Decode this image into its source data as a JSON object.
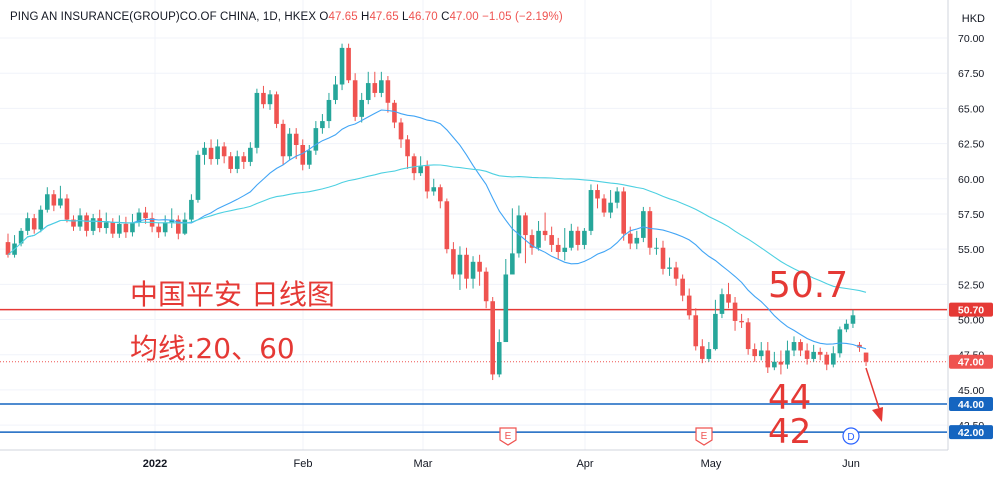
{
  "header": {
    "symbol": "PING AN INSURANCE(GROUP)CO.OF CHINA, 1D, HKEX",
    "open_label": "O",
    "open": "47.65",
    "high_label": "H",
    "high": "47.65",
    "low_label": "L",
    "low": "46.70",
    "close_label": "C",
    "close": "47.00",
    "change": "−1.05 (−2.19%)"
  },
  "currency": "HKD",
  "colors": {
    "up": "#26a69a",
    "down": "#ef5350",
    "ma20": "#42a5f5",
    "ma60": "#4dd0e1",
    "resistance": "#e53935",
    "support": "#1565c0",
    "annotation": "#e53935",
    "price_line": "#ef5350"
  },
  "chart_data": {
    "type": "candlestick",
    "y_axis": {
      "min": 40.8,
      "max": 70.5,
      "side": "right",
      "ticks": [
        "70.00",
        "67.50",
        "65.00",
        "62.50",
        "60.00",
        "57.50",
        "55.00",
        "52.50",
        "50.00",
        "47.50",
        "45.00",
        "42.50"
      ]
    },
    "x_axis": {
      "labels": [
        "2022",
        "Feb",
        "Mar",
        "Apr",
        "May",
        "Jun"
      ]
    },
    "price_labels": [
      {
        "value": 50.7,
        "text": "50.70",
        "color": "#e53935"
      },
      {
        "value": 47.0,
        "text": "47.00",
        "color": "#ef5350"
      },
      {
        "value": 44.0,
        "text": "44.00",
        "color": "#1565c0"
      },
      {
        "value": 42.0,
        "text": "42.00",
        "color": "#1565c0"
      }
    ],
    "horizontal_lines": [
      {
        "value": 50.7,
        "color": "#e53935",
        "style": "solid"
      },
      {
        "value": 44.0,
        "color": "#1565c0",
        "style": "solid"
      },
      {
        "value": 42.0,
        "color": "#1565c0",
        "style": "solid"
      },
      {
        "value": 47.0,
        "color": "#ef5350",
        "style": "dotted"
      }
    ],
    "candles": [
      [
        55.5,
        54.6,
        56.1,
        54.4
      ],
      [
        54.6,
        55.4,
        56.0,
        54.4
      ],
      [
        55.4,
        56.3,
        56.5,
        55.2
      ],
      [
        56.3,
        57.2,
        57.6,
        56.0
      ],
      [
        57.2,
        56.4,
        57.5,
        56.1
      ],
      [
        56.4,
        57.8,
        58.1,
        56.2
      ],
      [
        57.8,
        58.9,
        59.4,
        57.6
      ],
      [
        58.9,
        58.1,
        59.2,
        57.7
      ],
      [
        58.1,
        58.6,
        59.5,
        57.9
      ],
      [
        58.6,
        57.1,
        58.9,
        56.9
      ],
      [
        57.1,
        56.6,
        57.4,
        56.3
      ],
      [
        56.6,
        57.4,
        57.9,
        56.3
      ],
      [
        57.4,
        56.3,
        57.6,
        55.9
      ],
      [
        56.3,
        57.2,
        57.5,
        56.0
      ],
      [
        57.2,
        56.5,
        57.8,
        56.2
      ],
      [
        56.5,
        56.9,
        57.6,
        56.1
      ],
      [
        56.9,
        56.1,
        57.2,
        55.8
      ],
      [
        56.1,
        56.8,
        57.4,
        55.8
      ],
      [
        56.8,
        56.2,
        57.3,
        55.8
      ],
      [
        56.2,
        56.9,
        57.5,
        55.9
      ],
      [
        56.9,
        57.6,
        57.9,
        56.6
      ],
      [
        57.6,
        57.2,
        58.0,
        56.8
      ],
      [
        57.2,
        56.6,
        57.6,
        56.2
      ],
      [
        56.6,
        56.2,
        56.9,
        55.8
      ],
      [
        56.2,
        56.9,
        57.4,
        55.9
      ],
      [
        56.9,
        57.1,
        57.9,
        56.5
      ],
      [
        57.1,
        56.1,
        57.4,
        55.7
      ],
      [
        56.1,
        57.1,
        57.6,
        56.0
      ],
      [
        57.1,
        58.5,
        58.9,
        56.9
      ],
      [
        58.5,
        61.7,
        62.0,
        58.3
      ],
      [
        61.7,
        62.2,
        62.6,
        61.0
      ],
      [
        62.2,
        61.4,
        62.8,
        61.0
      ],
      [
        61.4,
        62.3,
        62.8,
        61.0
      ],
      [
        62.3,
        61.6,
        62.6,
        61.1
      ],
      [
        61.6,
        60.7,
        61.9,
        60.4
      ],
      [
        60.7,
        61.6,
        62.0,
        60.4
      ],
      [
        61.6,
        61.2,
        61.9,
        60.7
      ],
      [
        61.2,
        62.2,
        62.6,
        60.9
      ],
      [
        62.2,
        66.1,
        66.4,
        61.8
      ],
      [
        66.1,
        65.3,
        66.6,
        65.0
      ],
      [
        65.3,
        66.0,
        66.3,
        64.9
      ],
      [
        66.0,
        63.9,
        66.2,
        63.6
      ],
      [
        63.9,
        61.6,
        64.2,
        61.0
      ],
      [
        61.6,
        63.2,
        63.6,
        61.3
      ],
      [
        63.2,
        62.4,
        63.6,
        61.4
      ],
      [
        62.4,
        61.0,
        62.8,
        60.6
      ],
      [
        61.0,
        62.0,
        62.4,
        60.7
      ],
      [
        62.0,
        63.6,
        64.1,
        61.7
      ],
      [
        63.6,
        64.1,
        64.6,
        63.2
      ],
      [
        64.1,
        65.6,
        66.1,
        63.6
      ],
      [
        65.6,
        66.7,
        67.3,
        65.3
      ],
      [
        66.7,
        69.3,
        69.6,
        66.3
      ],
      [
        69.3,
        67.0,
        69.6,
        66.8
      ],
      [
        67.0,
        64.4,
        67.5,
        64.1
      ],
      [
        64.4,
        65.6,
        66.1,
        64.0
      ],
      [
        65.6,
        66.8,
        67.6,
        65.3
      ],
      [
        66.8,
        66.1,
        67.6,
        65.8
      ],
      [
        66.1,
        67.0,
        67.6,
        65.8
      ],
      [
        67.0,
        65.4,
        67.3,
        64.7
      ],
      [
        65.4,
        64.0,
        65.6,
        63.6
      ],
      [
        64.0,
        62.8,
        64.3,
        62.2
      ],
      [
        62.8,
        61.6,
        63.1,
        60.7
      ],
      [
        61.6,
        60.4,
        61.8,
        59.9
      ],
      [
        60.4,
        60.9,
        61.6,
        60.2
      ],
      [
        60.9,
        59.1,
        61.3,
        58.6
      ],
      [
        59.1,
        59.4,
        60.0,
        58.8
      ],
      [
        59.4,
        58.4,
        59.6,
        57.9
      ],
      [
        58.4,
        55.0,
        58.6,
        54.7
      ],
      [
        55.0,
        53.2,
        55.5,
        52.9
      ],
      [
        53.2,
        54.6,
        55.2,
        52.1
      ],
      [
        54.6,
        52.9,
        55.1,
        52.2
      ],
      [
        52.9,
        54.1,
        54.5,
        52.2
      ],
      [
        54.1,
        53.4,
        54.6,
        52.4
      ],
      [
        53.4,
        51.3,
        53.7,
        50.8
      ],
      [
        51.3,
        46.1,
        51.6,
        45.7
      ],
      [
        46.1,
        48.4,
        49.3,
        45.9
      ],
      [
        48.4,
        53.2,
        54.3,
        52.1
      ],
      [
        53.2,
        54.7,
        57.9,
        53.5
      ],
      [
        54.7,
        57.4,
        58.1,
        54.4
      ],
      [
        57.4,
        56.0,
        57.6,
        54.0
      ],
      [
        56.0,
        55.1,
        56.4,
        54.6
      ],
      [
        55.1,
        56.3,
        57.0,
        54.9
      ],
      [
        56.3,
        56.0,
        57.6,
        55.6
      ],
      [
        56.0,
        55.3,
        56.6,
        54.8
      ],
      [
        55.3,
        54.8,
        55.8,
        54.3
      ],
      [
        54.8,
        55.1,
        56.5,
        54.2
      ],
      [
        55.1,
        56.3,
        56.8,
        54.9
      ],
      [
        56.3,
        55.3,
        56.6,
        54.9
      ],
      [
        55.3,
        56.3,
        56.5,
        55.0
      ],
      [
        56.3,
        59.2,
        59.6,
        56.0
      ],
      [
        59.2,
        58.6,
        59.6,
        57.9
      ],
      [
        58.6,
        57.6,
        58.9,
        57.3
      ],
      [
        57.6,
        58.3,
        59.2,
        57.2
      ],
      [
        58.3,
        59.1,
        59.4,
        57.9
      ],
      [
        59.1,
        56.1,
        59.4,
        55.6
      ],
      [
        56.1,
        55.4,
        56.6,
        55.0
      ],
      [
        55.4,
        55.8,
        56.3,
        55.0
      ],
      [
        55.8,
        57.7,
        58.0,
        55.5
      ],
      [
        57.7,
        55.1,
        58.0,
        54.6
      ],
      [
        55.1,
        55.1,
        55.8,
        54.6
      ],
      [
        55.1,
        53.6,
        55.6,
        53.2
      ],
      [
        53.6,
        53.7,
        54.4,
        53.1
      ],
      [
        53.7,
        52.9,
        54.1,
        52.4
      ],
      [
        52.9,
        51.7,
        53.2,
        51.3
      ],
      [
        51.7,
        50.3,
        52.2,
        50.0
      ],
      [
        50.3,
        48.1,
        50.8,
        47.8
      ],
      [
        48.1,
        47.2,
        48.6,
        46.9
      ],
      [
        47.2,
        47.9,
        48.4,
        47.0
      ],
      [
        47.9,
        50.4,
        51.4,
        47.8
      ],
      [
        50.4,
        51.8,
        52.2,
        50.1
      ],
      [
        51.8,
        51.2,
        52.6,
        50.8
      ],
      [
        51.2,
        49.9,
        51.6,
        49.2
      ],
      [
        49.9,
        49.8,
        50.4,
        49.4
      ],
      [
        49.8,
        47.9,
        50.1,
        47.5
      ],
      [
        47.9,
        47.4,
        48.3,
        47.0
      ],
      [
        47.4,
        47.8,
        48.4,
        47.1
      ],
      [
        47.8,
        46.6,
        48.4,
        46.2
      ],
      [
        46.6,
        47.0,
        47.7,
        46.4
      ],
      [
        47.0,
        46.8,
        47.8,
        46.1
      ],
      [
        46.8,
        47.8,
        48.5,
        46.5
      ],
      [
        47.8,
        48.4,
        48.8,
        47.4
      ],
      [
        48.4,
        47.8,
        48.6,
        47.4
      ],
      [
        47.8,
        47.2,
        48.3,
        46.8
      ],
      [
        47.2,
        47.7,
        48.2,
        47.0
      ],
      [
        47.7,
        47.5,
        48.0,
        47.1
      ],
      [
        47.5,
        46.8,
        47.7,
        46.4
      ],
      [
        46.8,
        47.6,
        48.1,
        46.6
      ],
      [
        47.6,
        49.3,
        49.5,
        47.3
      ],
      [
        49.3,
        49.7,
        50.0,
        49.1
      ],
      [
        49.7,
        50.3,
        50.7,
        49.4
      ],
      [
        48.2,
        48.0,
        48.4,
        47.7
      ],
      [
        47.65,
        47.0,
        47.65,
        46.7
      ]
    ]
  },
  "annotations": {
    "title": "中国平安 日线图",
    "ma_label": "均线:20、60",
    "target_1": "50.7",
    "target_2": "44",
    "target_3": "42"
  },
  "events": [
    {
      "label": "E"
    },
    {
      "label": "E"
    },
    {
      "label": "D"
    }
  ]
}
